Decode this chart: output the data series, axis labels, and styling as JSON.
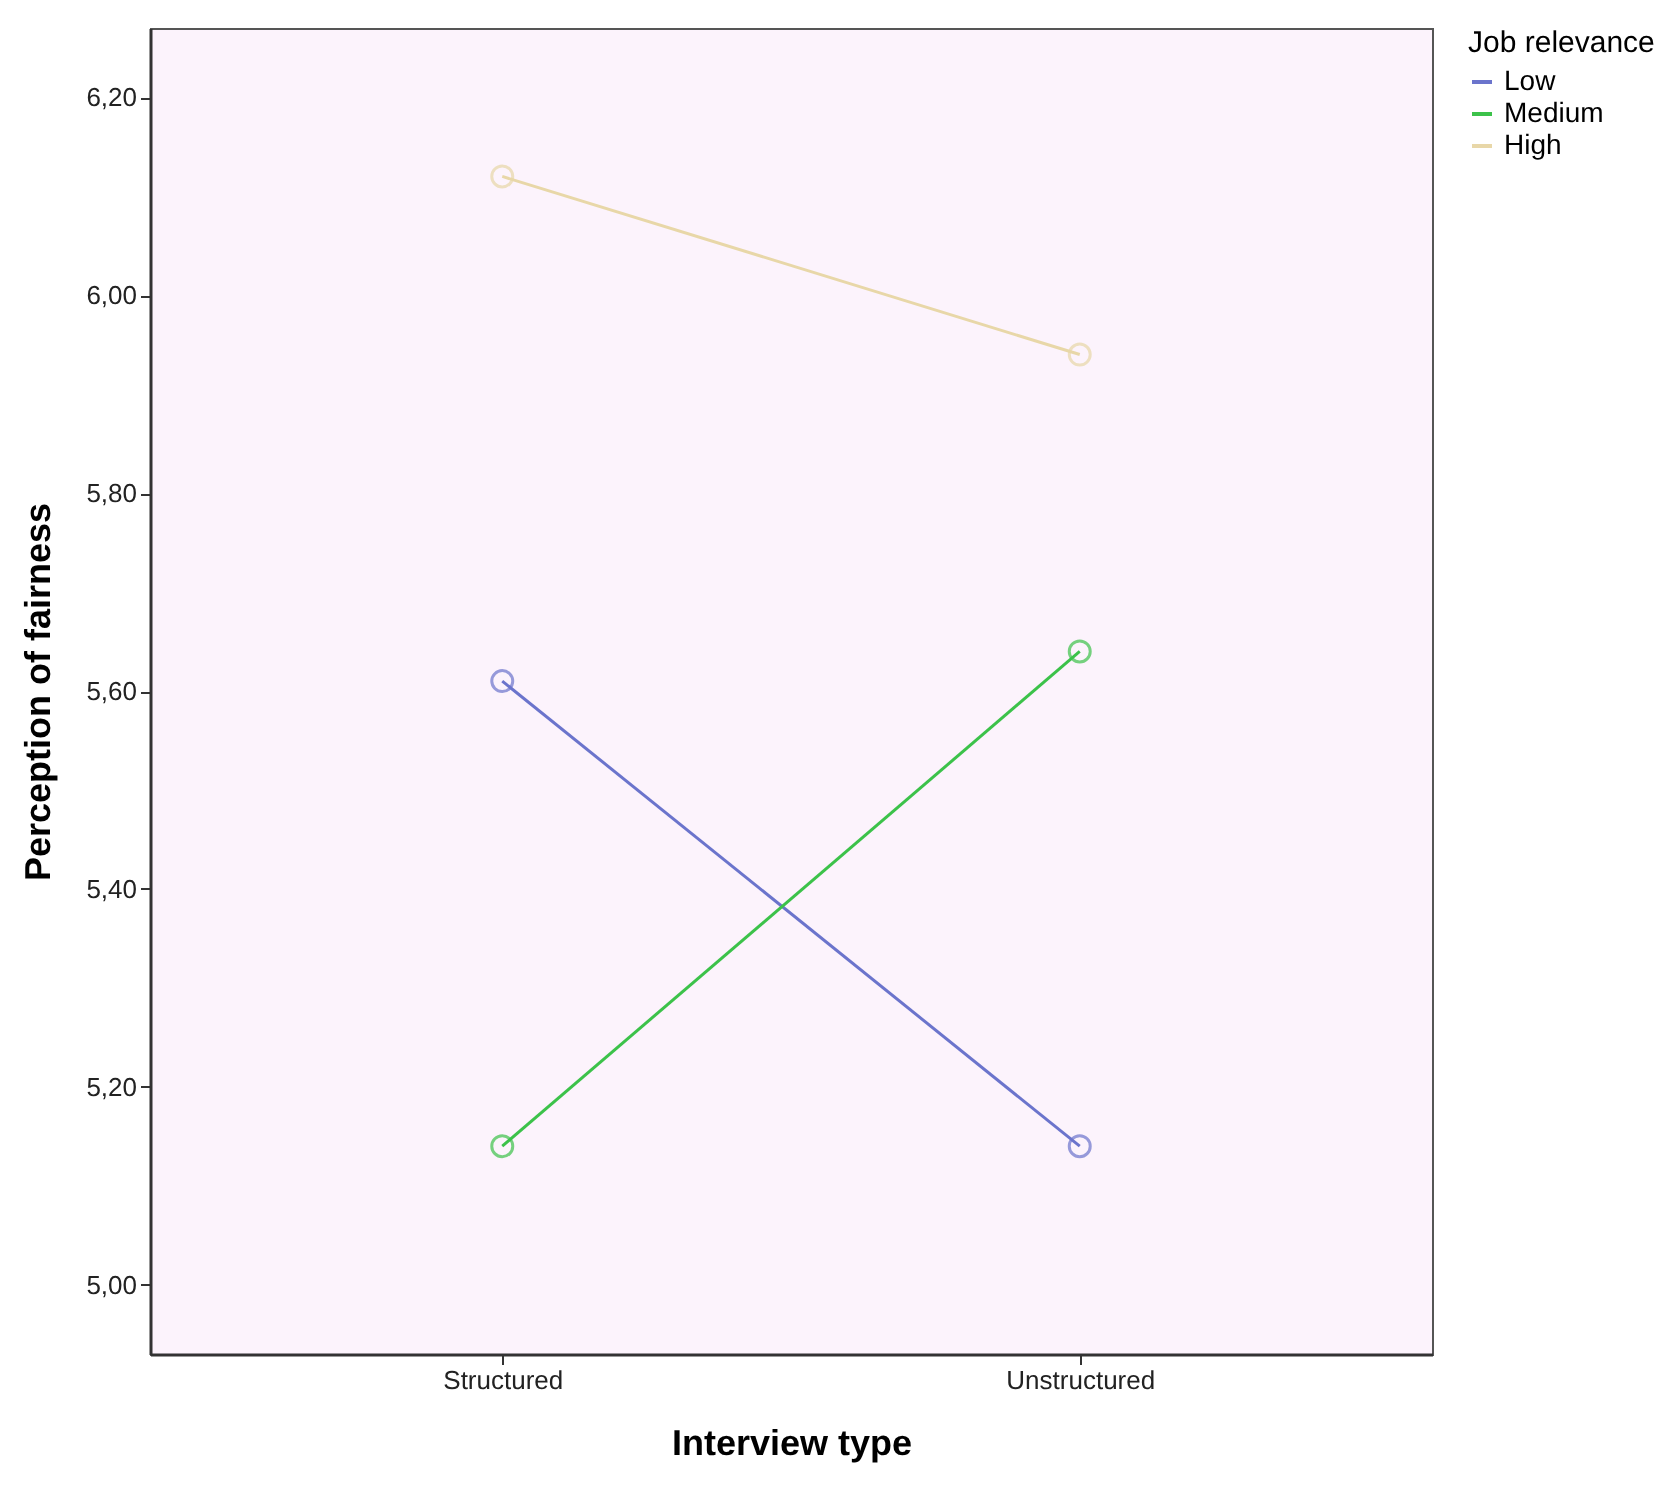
{
  "chart_data": {
    "type": "line",
    "xlabel": "Interview type",
    "ylabel": "Perception of fairness",
    "legend_title": "Job relevance",
    "legend": "top right",
    "marker": "circle",
    "categories": [
      "Structured",
      "Unstructured"
    ],
    "series": [
      {
        "name": "Low",
        "color": "#6b74cc",
        "values": [
          5.61,
          5.14
        ]
      },
      {
        "name": "Medium",
        "color": "#3cc24a",
        "values": [
          5.14,
          5.64
        ]
      },
      {
        "name": "High",
        "color": "#e8d7a8",
        "values": [
          6.12,
          5.94
        ]
      }
    ],
    "ylim": [
      4.93,
      6.27
    ],
    "yticks": [
      {
        "value": 5.0,
        "label": "5,00"
      },
      {
        "value": 5.2,
        "label": "5,20"
      },
      {
        "value": 5.4,
        "label": "5,40"
      },
      {
        "value": 5.6,
        "label": "5,60"
      },
      {
        "value": 5.8,
        "label": "5,80"
      },
      {
        "value": 6.0,
        "label": "6,00"
      },
      {
        "value": 6.2,
        "label": "6,20"
      }
    ]
  }
}
